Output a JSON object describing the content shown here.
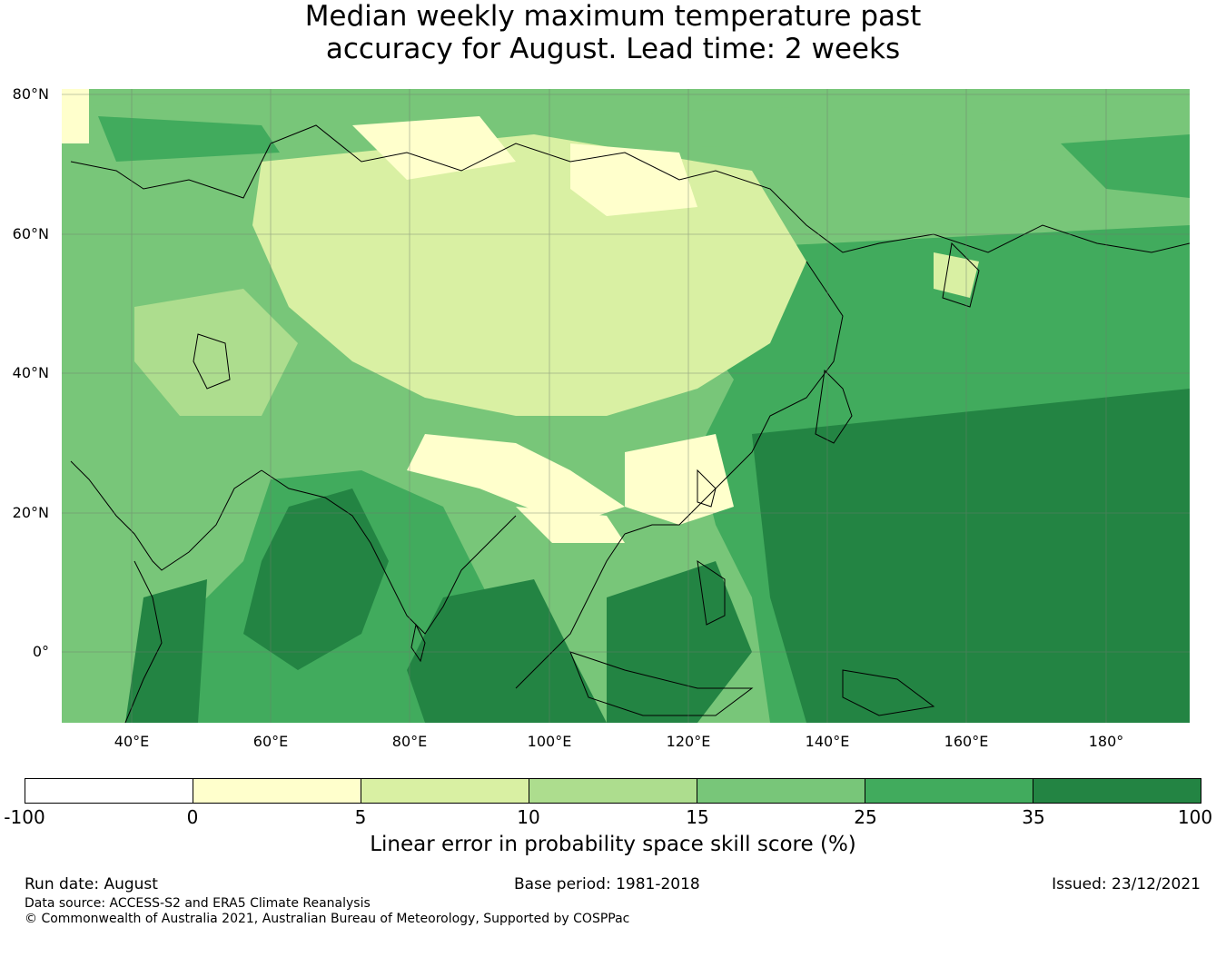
{
  "title_line1": "Median weekly maximum temperature past",
  "title_line2": "accuracy for August. Lead time: 2 weeks",
  "map": {
    "lat_labels": [
      "80°N",
      "60°N",
      "40°N",
      "20°N",
      "0°"
    ],
    "lon_labels": [
      "40°E",
      "60°E",
      "80°E",
      "100°E",
      "120°E",
      "140°E",
      "160°E",
      "180°"
    ],
    "extent": {
      "lon_min": 30,
      "lon_max": 192,
      "lat_min": -10,
      "lat_max": 81
    },
    "colors": {
      "grid": "#6e7a6e",
      "coast": "#000000"
    }
  },
  "colorbar": {
    "ticks": [
      "-100",
      "0",
      "5",
      "10",
      "15",
      "25",
      "35",
      "100"
    ],
    "colors": [
      "#ffffff",
      "#ffffcc",
      "#d9f0a3",
      "#addd8e",
      "#78c679",
      "#41ab5d",
      "#238443"
    ],
    "label": "Linear error in probability space skill score (%)"
  },
  "footer": {
    "run_date": "Run date: August",
    "base_period": "Base period: 1981-2018",
    "issued": "Issued: 23/12/2021",
    "data_source": "Data source: ACCESS-S2 and ERA5 Climate Reanalysis",
    "copyright": "© Commonwealth of Australia 2021, Australian Bureau of Meteorology, Supported by COSPPac"
  }
}
